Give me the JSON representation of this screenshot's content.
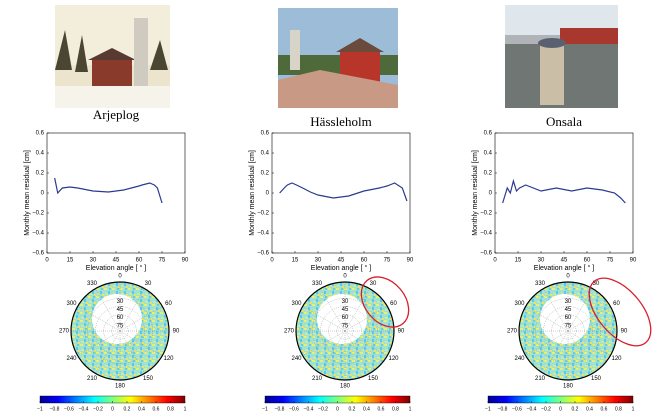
{
  "chart_data": [
    {
      "type": "line",
      "title": "Arjeplog",
      "xlabel": "Elevation angle [ ° ]",
      "ylabel": "Monthly mean residual [cm]",
      "x": [
        5,
        7,
        10,
        15,
        20,
        30,
        40,
        45,
        50,
        55,
        60,
        62,
        67,
        70,
        72,
        75
      ],
      "values": [
        0.15,
        0.0,
        0.05,
        0.06,
        0.05,
        0.02,
        0.01,
        0.02,
        0.03,
        0.05,
        0.07,
        0.08,
        0.1,
        0.08,
        0.05,
        -0.1
      ],
      "color": "#2b3a8f",
      "xlim": [
        0,
        90
      ],
      "xticks": [
        0,
        15,
        30,
        45,
        60,
        75,
        90
      ],
      "ylim": [
        -0.6,
        0.6
      ],
      "yticks": [
        {
          "value": -0.6,
          "label": "−0.6"
        },
        {
          "value": -0.4,
          "label": "−0.4"
        },
        {
          "value": -0.2,
          "label": "−0.2"
        },
        0,
        0.2,
        0.4,
        0.6
      ],
      "azimuth_ticks": [
        0,
        30,
        60,
        90,
        120,
        150,
        180,
        210,
        240,
        270,
        300,
        330
      ],
      "elevation_ticks": [
        30,
        45,
        60,
        75
      ],
      "colorbar_lim": [
        -1,
        1
      ],
      "colorbar_ticks": [
        {
          "value": -1,
          "label": "−1"
        },
        {
          "value": -0.8,
          "label": "−0.8"
        },
        {
          "value": -0.6,
          "label": "−0.6"
        },
        {
          "value": -0.4,
          "label": "−0.4"
        },
        {
          "value": -0.2,
          "label": "−0.2"
        },
        0,
        0.2,
        0.4,
        0.6,
        0.8,
        1
      ]
    },
    {
      "type": "line",
      "title": "Hässleholm",
      "xlabel": "Elevation angle [ ° ]",
      "ylabel": "Monthly mean residual [cm]",
      "x": [
        5,
        8,
        10,
        13,
        16,
        20,
        25,
        30,
        40,
        50,
        60,
        70,
        75,
        80,
        85,
        88
      ],
      "values": [
        0.0,
        0.05,
        0.08,
        0.1,
        0.08,
        0.05,
        0.01,
        -0.02,
        -0.05,
        -0.03,
        0.02,
        0.05,
        0.07,
        0.1,
        0.05,
        -0.08
      ],
      "color": "#2b3a8f",
      "xlim": [
        0,
        90
      ],
      "xticks": [
        0,
        15,
        30,
        45,
        60,
        75,
        90
      ],
      "ylim": [
        -0.6,
        0.6
      ],
      "yticks": [
        {
          "value": -0.6,
          "label": "−0.6"
        },
        {
          "value": -0.4,
          "label": "−0.4"
        },
        {
          "value": -0.2,
          "label": "−0.2"
        },
        0,
        0.2,
        0.4,
        0.6
      ],
      "azimuth_ticks": [
        0,
        30,
        60,
        90,
        120,
        150,
        180,
        210,
        240,
        270,
        300,
        330
      ],
      "elevation_ticks": [
        30,
        45,
        60,
        75
      ],
      "colorbar_lim": [
        -1,
        1
      ],
      "colorbar_ticks": [
        {
          "value": -1,
          "label": "−1"
        },
        {
          "value": -0.8,
          "label": "−0.8"
        },
        {
          "value": -0.6,
          "label": "−0.6"
        },
        {
          "value": -0.4,
          "label": "−0.4"
        },
        {
          "value": -0.2,
          "label": "−0.2"
        },
        0,
        0.2,
        0.4,
        0.6,
        0.8,
        1
      ]
    },
    {
      "type": "line",
      "title": "Onsala",
      "xlabel": "Elevation angle [ ° ]",
      "ylabel": "Monthly mean residual [cm]",
      "x": [
        5,
        8,
        10,
        12,
        14,
        16,
        20,
        30,
        40,
        50,
        60,
        70,
        78,
        82,
        85
      ],
      "values": [
        -0.1,
        0.05,
        0.0,
        0.12,
        0.02,
        0.05,
        0.08,
        0.02,
        0.05,
        0.02,
        0.05,
        0.03,
        0.0,
        -0.05,
        -0.1
      ],
      "color": "#2b3a8f",
      "xlim": [
        0,
        90
      ],
      "xticks": [
        0,
        15,
        30,
        45,
        60,
        75,
        90
      ],
      "ylim": [
        -0.6,
        0.6
      ],
      "yticks": [
        {
          "value": -0.6,
          "label": "−0.6"
        },
        {
          "value": -0.4,
          "label": "−0.4"
        },
        {
          "value": -0.2,
          "label": "−0.2"
        },
        0,
        0.2,
        0.4,
        0.6
      ],
      "azimuth_ticks": [
        0,
        30,
        60,
        90,
        120,
        150,
        180,
        210,
        240,
        270,
        300,
        330
      ],
      "elevation_ticks": [
        30,
        45,
        60,
        75
      ],
      "colorbar_lim": [
        -1,
        1
      ],
      "colorbar_ticks": [
        {
          "value": -1,
          "label": "−1"
        },
        {
          "value": -0.8,
          "label": "−0.8"
        },
        {
          "value": -0.6,
          "label": "−0.6"
        },
        {
          "value": -0.4,
          "label": "−0.4"
        },
        {
          "value": -0.2,
          "label": "−0.2"
        },
        0,
        0.2,
        0.4,
        0.6,
        0.8,
        1
      ]
    }
  ]
}
